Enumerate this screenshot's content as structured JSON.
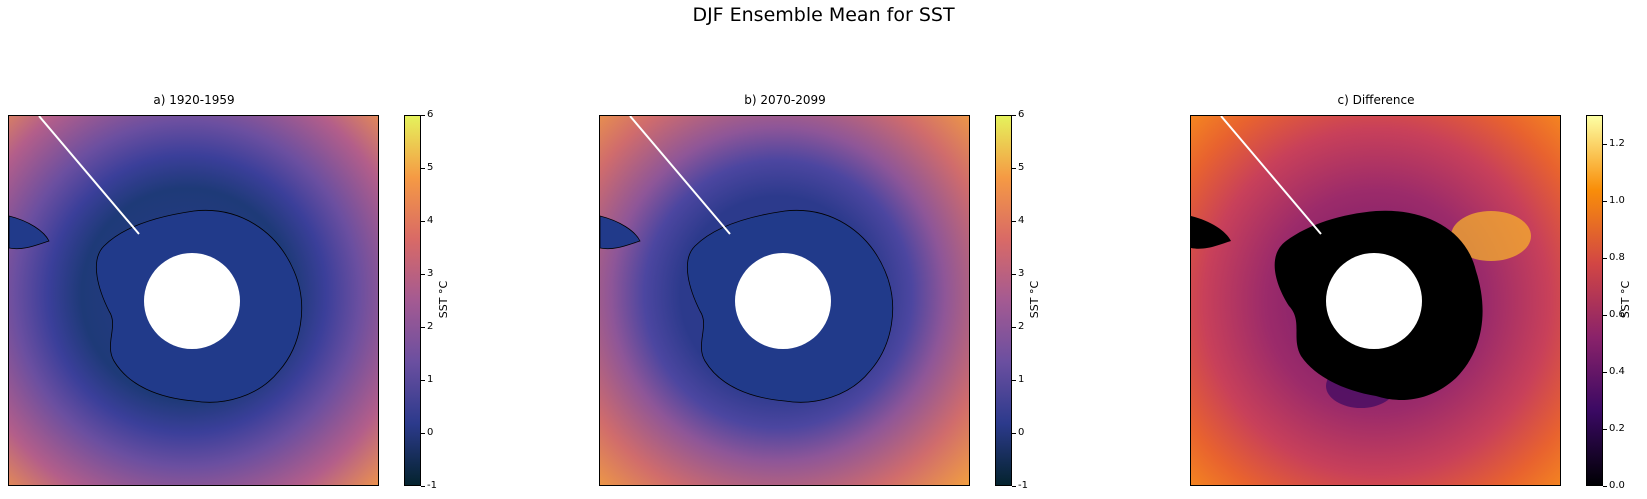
{
  "title": "DJF Ensemble Mean for SST",
  "panels": [
    {
      "title": "a) 1920-1959",
      "colorbar": {
        "label": "SST °C",
        "ticks": [
          "-1",
          "0",
          "1",
          "2",
          "3",
          "4",
          "5",
          "6"
        ],
        "range": [
          -1,
          6
        ],
        "colormap": "thermal"
      }
    },
    {
      "title": "b) 2070-2099",
      "colorbar": {
        "label": "SST °C",
        "ticks": [
          "-1",
          "0",
          "1",
          "2",
          "3",
          "4",
          "5",
          "6"
        ],
        "range": [
          -1,
          6
        ],
        "colormap": "thermal"
      }
    },
    {
      "title": "c) Difference",
      "colorbar": {
        "label": "SST °C",
        "ticks": [
          "0.0",
          "0.2",
          "0.4",
          "0.6",
          "0.8",
          "1.0",
          "1.2"
        ],
        "range": [
          0,
          1.3
        ],
        "colormap": "inferno"
      }
    }
  ],
  "colors": {
    "thermal": [
      "#04232e",
      "#2c3a8c",
      "#6b4fa0",
      "#a45a92",
      "#d96a66",
      "#f59a44",
      "#e5f25c"
    ],
    "inferno": [
      "#000004",
      "#3a0963",
      "#8a226a",
      "#d24644",
      "#f98e09",
      "#fcffa4"
    ]
  }
}
